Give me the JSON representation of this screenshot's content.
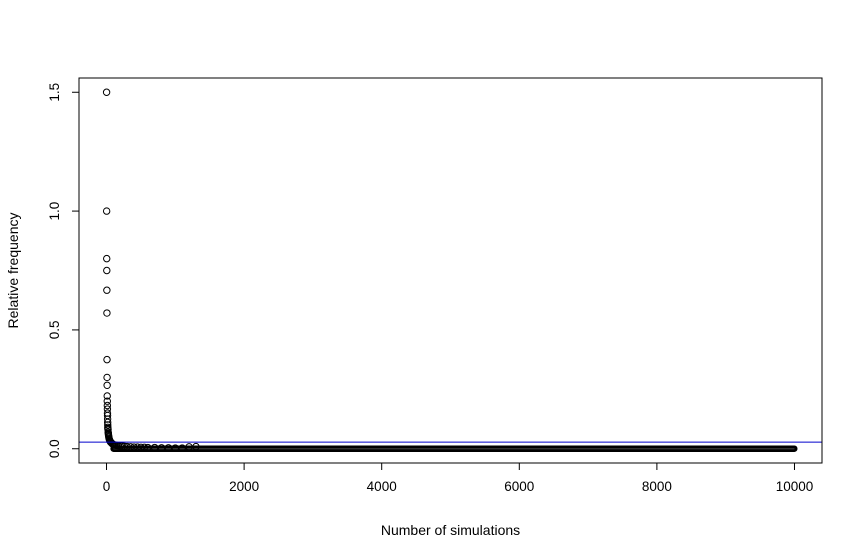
{
  "chart_data": {
    "type": "scatter",
    "title": "",
    "xlabel": "Number of simulations",
    "ylabel": "Relative frequency",
    "xlim": [
      -400,
      10400
    ],
    "ylim": [
      -0.06,
      1.56
    ],
    "x_ticks": [
      0,
      2000,
      4000,
      6000,
      8000,
      10000
    ],
    "x_tick_labels": [
      "0",
      "2000",
      "4000",
      "6000",
      "8000",
      "10000"
    ],
    "y_ticks": [
      0.0,
      0.5,
      1.0,
      1.5
    ],
    "y_tick_labels": [
      "0.0",
      "0.5",
      "1.0",
      "1.5"
    ],
    "reference_line": {
      "y": 0.028,
      "color": "#0000cc"
    },
    "marker": {
      "shape": "open-circle",
      "color": "#000000"
    },
    "grid": false,
    "legend": "none",
    "series": [
      {
        "x": [
          1,
          2,
          3,
          4,
          5,
          6,
          7,
          8,
          9,
          10,
          11,
          12,
          13,
          14,
          15,
          16,
          17,
          18,
          19,
          20,
          22,
          24,
          26,
          28,
          30,
          33,
          36,
          40,
          45,
          50,
          55,
          60,
          70,
          80,
          90,
          100,
          115,
          130,
          150,
          170,
          200,
          230,
          260,
          300,
          350,
          400,
          450,
          500,
          550,
          600,
          700,
          800,
          900,
          1000,
          1100,
          1200,
          1300
        ],
        "y": [
          1.5,
          1.0,
          0.8,
          0.75,
          0.667,
          0.571,
          0.375,
          0.3,
          0.267,
          0.222,
          0.2,
          0.182,
          0.167,
          0.15,
          0.14,
          0.125,
          0.111,
          0.1,
          0.09,
          0.085,
          0.08,
          0.07,
          0.065,
          0.06,
          0.055,
          0.05,
          0.045,
          0.04,
          0.036,
          0.033,
          0.03,
          0.028,
          0.025,
          0.022,
          0.02,
          0.018,
          0.016,
          0.015,
          0.014,
          0.013,
          0.012,
          0.011,
          0.01,
          0.009,
          0.008,
          0.007,
          0.007,
          0.006,
          0.006,
          0.005,
          0.005,
          0.004,
          0.004,
          0.003,
          0.003,
          0.008,
          0.009
        ]
      }
    ],
    "dense_band": {
      "x_start": 100,
      "x_end": 10000,
      "y": 0.0
    }
  }
}
